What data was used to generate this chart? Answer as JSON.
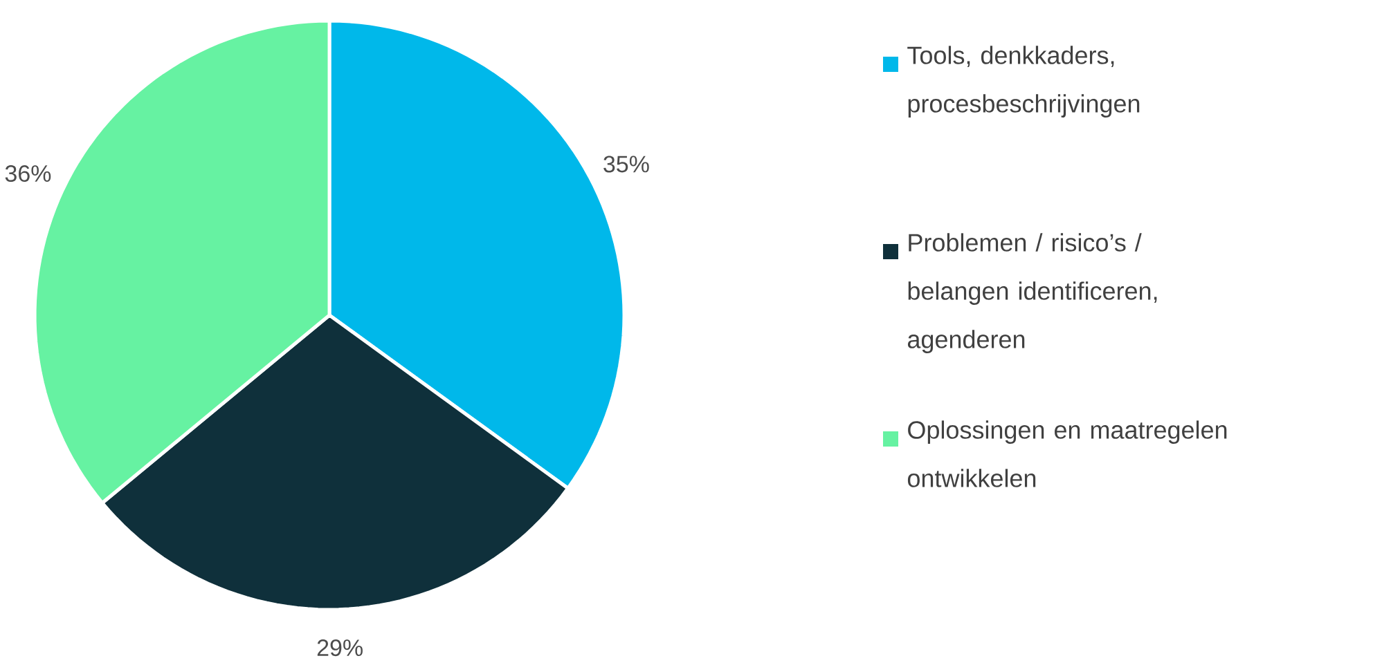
{
  "chart_data": {
    "type": "pie",
    "categories": [
      "Tools, denkkaders, procesbeschrijvingen",
      "Problemen / risico’s / belangen identificeren, agenderen",
      "Oplossingen en maatregelen ontwikkelen"
    ],
    "values": [
      35,
      29,
      36
    ],
    "value_labels": [
      "35%",
      "29%",
      "36%"
    ],
    "colors": [
      "#00b8ea",
      "#0f303b",
      "#66f2a2"
    ],
    "legend": "right"
  }
}
